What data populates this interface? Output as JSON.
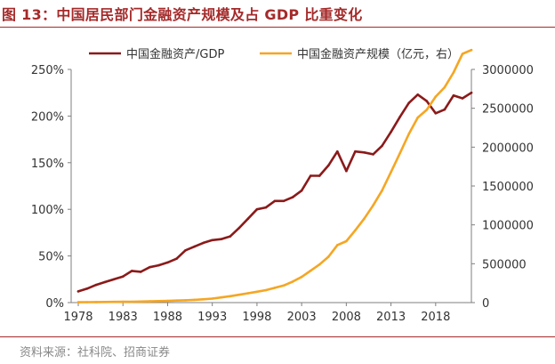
{
  "figure": {
    "title": "图 13：中国居民部门金融资产规模及占 GDP 比重变化",
    "source": "资料来源：社科院、招商证券"
  },
  "chart_data": {
    "type": "line",
    "x": [
      1978,
      1979,
      1980,
      1981,
      1982,
      1983,
      1984,
      1985,
      1986,
      1987,
      1988,
      1989,
      1990,
      1991,
      1992,
      1993,
      1994,
      1995,
      1996,
      1997,
      1998,
      1999,
      2000,
      2001,
      2002,
      2003,
      2004,
      2005,
      2006,
      2007,
      2008,
      2009,
      2010,
      2011,
      2012,
      2013,
      2014,
      2015,
      2016,
      2017,
      2018,
      2019,
      2020,
      2021,
      2022
    ],
    "xticks": [
      1978,
      1983,
      1988,
      1993,
      1998,
      2003,
      2008,
      2013,
      2018
    ],
    "series": [
      {
        "name": "中国金融资产/GDP",
        "axis": "left",
        "color": "#8b1a1a",
        "values": [
          12,
          15,
          19,
          22,
          25,
          28,
          34,
          33,
          38,
          40,
          43,
          47,
          56,
          60,
          64,
          67,
          68,
          71,
          80,
          90,
          100,
          102,
          109,
          109,
          113,
          120,
          136,
          136,
          147,
          162,
          141,
          162,
          161,
          159,
          168,
          183,
          199,
          214,
          223,
          216,
          203,
          207,
          222,
          219,
          225
        ]
      },
      {
        "name": "中国金融资产规模（亿元，右）",
        "axis": "right",
        "color": "#f5a623",
        "values": [
          5000,
          6000,
          7000,
          8000,
          9000,
          10000,
          12000,
          14000,
          16000,
          19000,
          22000,
          26000,
          30000,
          35000,
          42000,
          52000,
          66000,
          82000,
          101000,
          120000,
          140000,
          160000,
          190000,
          220000,
          270000,
          330000,
          410000,
          490000,
          590000,
          740000,
          790000,
          930000,
          1080000,
          1250000,
          1440000,
          1680000,
          1920000,
          2170000,
          2380000,
          2480000,
          2650000,
          2770000,
          2960000,
          3200000,
          3250000
        ]
      }
    ],
    "yleft": {
      "min": 0,
      "max": 250,
      "ticks": [
        "0%",
        "50%",
        "100%",
        "150%",
        "200%",
        "250%"
      ]
    },
    "yright": {
      "min": 0,
      "max": 3000000,
      "ticks": [
        "0",
        "500000",
        "1000000",
        "1500000",
        "2000000",
        "2500000",
        "3000000"
      ]
    },
    "legend_position": "top",
    "grid": false
  }
}
